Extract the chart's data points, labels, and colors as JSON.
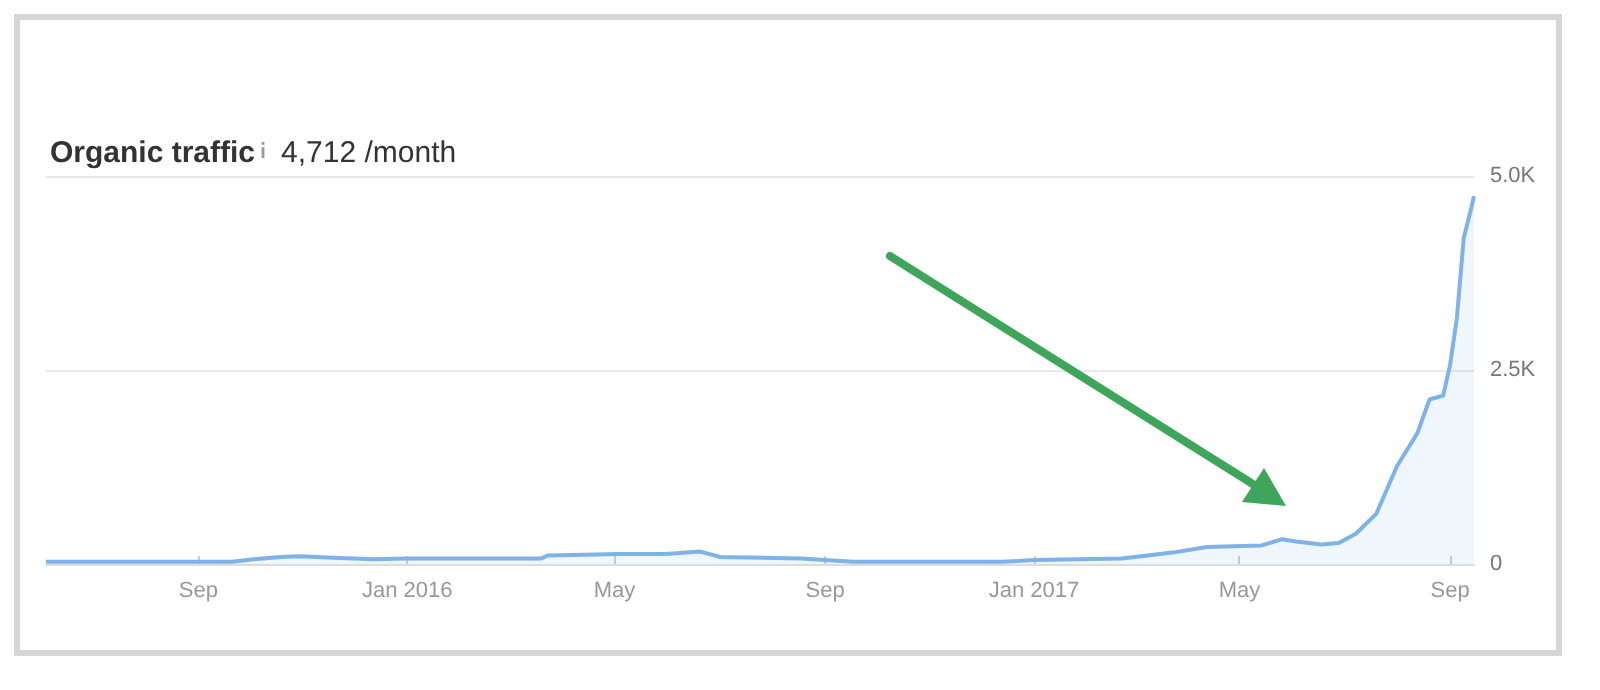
{
  "chart_data": {
    "type": "area",
    "title": "Organic traffic",
    "subtitle": "4,712 /month",
    "x": [
      "2015-06-04",
      "2015-09-02",
      "2015-09-21",
      "2015-10-03",
      "2015-10-19",
      "2015-10-30",
      "2015-11-19",
      "2015-12-13",
      "2015-12-31",
      "2016-03-19",
      "2016-03-23",
      "2016-05-04",
      "2016-05-31",
      "2016-06-20",
      "2016-07-02",
      "2016-08-18",
      "2016-09-17",
      "2016-12-13",
      "2017-01-02",
      "2017-02-21",
      "2017-03-01",
      "2017-03-24",
      "2017-04-12",
      "2017-05-14",
      "2017-05-26",
      "2017-06-03",
      "2017-06-18",
      "2017-06-28",
      "2017-07-08",
      "2017-07-20",
      "2017-08-01",
      "2017-08-13",
      "2017-08-20",
      "2017-08-28",
      "2017-09-01",
      "2017-09-05",
      "2017-09-09",
      "2017-09-13",
      "2017-09-15"
    ],
    "series": [
      {
        "color": "#7eb2e8",
        "values": [
          30,
          30,
          30,
          60,
          90,
          100,
          80,
          60,
          70,
          70,
          110,
          130,
          130,
          160,
          90,
          70,
          30,
          30,
          50,
          70,
          90,
          150,
          220,
          240,
          320,
          290,
          250,
          270,
          390,
          650,
          1260,
          1690,
          2120,
          2170,
          2560,
          3170,
          4200,
          4550,
          4740
        ]
      }
    ],
    "xlim": [
      "2015-06-04",
      "2017-09-15"
    ],
    "xticks": [
      {
        "value": "2015-09-01",
        "label": "Sep"
      },
      {
        "value": "2016-01-01",
        "label": "Jan 2016"
      },
      {
        "value": "2016-05-01",
        "label": "May"
      },
      {
        "value": "2016-09-01",
        "label": "Sep"
      },
      {
        "value": "2017-01-01",
        "label": "Jan 2017"
      },
      {
        "value": "2017-05-01",
        "label": "May"
      },
      {
        "value": "2017-09-01",
        "label": "Sep"
      }
    ],
    "ylim": [
      0,
      5000
    ],
    "yticks": [
      0,
      {
        "value": 2500,
        "label": "2.5K"
      },
      {
        "value": 5000,
        "label": "5.0K"
      }
    ],
    "grid": "y"
  }
}
